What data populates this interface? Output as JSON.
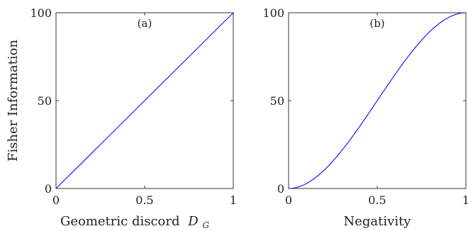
{
  "chart_data": [
    {
      "type": "line",
      "panel_label": "(a)",
      "xlabel": "Geometric discord",
      "xlabel_symbol": "D",
      "xlabel_subscript": "G",
      "ylabel": "Fisher Information",
      "xlim": [
        0,
        1
      ],
      "ylim": [
        0,
        100
      ],
      "xticks": [
        "0",
        "0.5",
        "1"
      ],
      "yticks": [
        "0",
        "50",
        "100"
      ],
      "grid": false,
      "series": [
        {
          "color": "#1a1aff",
          "x": [
            0,
            0.25,
            0.5,
            0.75,
            1.0
          ],
          "y": [
            0,
            25,
            50,
            75,
            100
          ]
        }
      ]
    },
    {
      "type": "line",
      "panel_label": "(b)",
      "xlabel": "Negativity",
      "ylabel": "",
      "xlim": [
        0,
        1
      ],
      "ylim": [
        0,
        100
      ],
      "xticks": [
        "0",
        "0.5",
        "1"
      ],
      "yticks": [
        "0",
        "50",
        "100"
      ],
      "grid": false,
      "series": [
        {
          "color": "#1a1aff",
          "x": [
            0,
            0.05,
            0.1,
            0.2,
            0.3,
            0.4,
            0.5,
            0.6,
            0.7,
            0.8,
            0.9,
            1.0
          ],
          "y": [
            0,
            0.6,
            2.4,
            9.5,
            20.6,
            34.5,
            50,
            65.5,
            79.4,
            90.5,
            97.6,
            100
          ]
        }
      ]
    }
  ]
}
